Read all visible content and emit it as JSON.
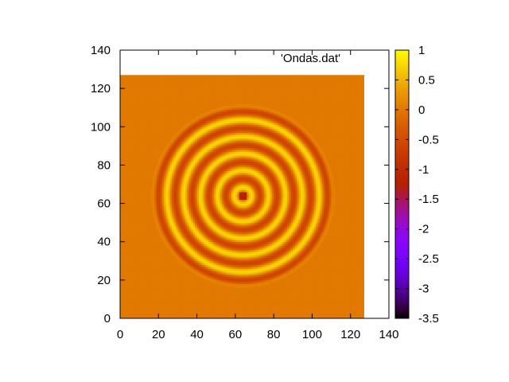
{
  "chart_data": {
    "type": "heatmap",
    "title": "",
    "xlabel": "",
    "ylabel": "",
    "legend": {
      "label": "'Ondas.dat'",
      "placement": "top-right"
    },
    "xlim": [
      0,
      140
    ],
    "ylim": [
      0,
      140
    ],
    "x_ticks": [
      0,
      20,
      40,
      60,
      80,
      100,
      120,
      140
    ],
    "y_ticks": [
      0,
      20,
      40,
      60,
      80,
      100,
      120,
      140
    ],
    "data_extent": {
      "x": [
        0,
        127
      ],
      "y": [
        0,
        127
      ]
    },
    "field": {
      "description_of_values": "concentric circular wave rings centered on the grid",
      "center": [
        64,
        64
      ],
      "background_value": 0,
      "center_value": -1.2,
      "ring_peak_value": 0.75,
      "ring_trough_value": -0.6,
      "outer_radius": 45,
      "wavelength": 8.8
    },
    "colorbar": {
      "range": [
        -3.5,
        1
      ],
      "ticks": [
        1,
        0.5,
        0,
        -0.5,
        -1,
        -1.5,
        -2,
        -2.5,
        -3,
        -3.5
      ],
      "palette": "gnuplot (black-purple-red-orange-yellow)"
    }
  }
}
